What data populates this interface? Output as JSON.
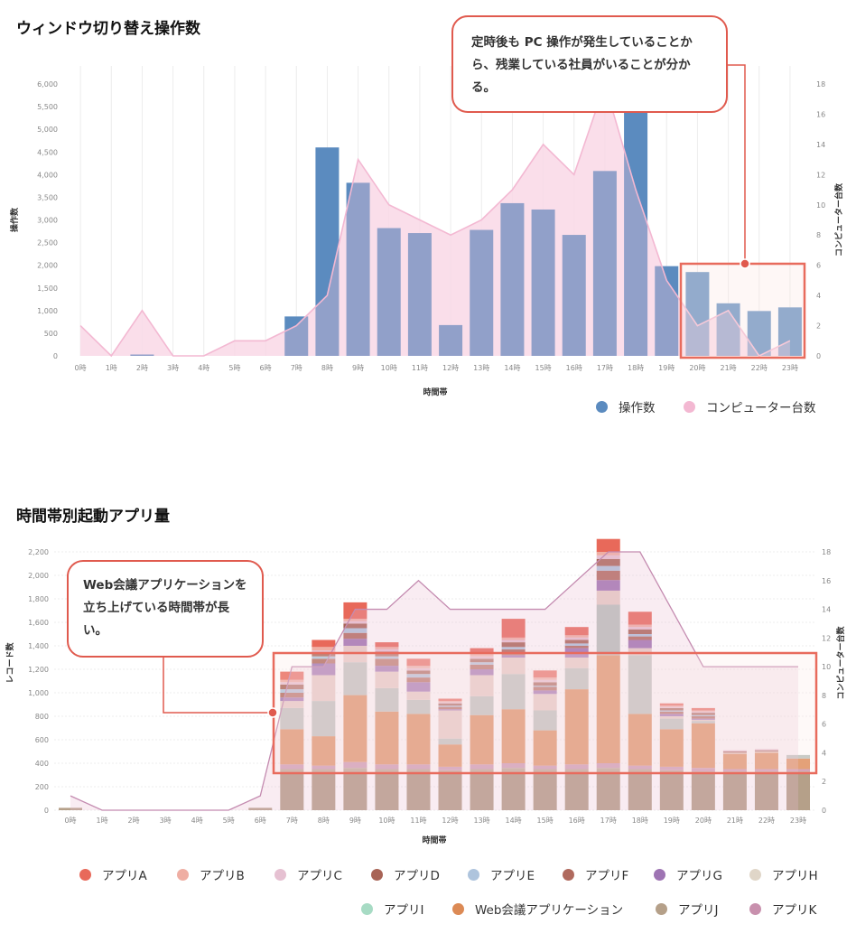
{
  "section1": {
    "title": "ウィンドウ切り替え操作数"
  },
  "section2": {
    "title": "時間帯別起動アプリ量"
  },
  "callout1": {
    "text": "定時後も PC 操作が発生していることから、残業している社員がいることが分かる。"
  },
  "callout2": {
    "text": "Web会議アプリケーションを立ち上げている時間帯が長い。"
  },
  "colors": {
    "accent": "#e05a4e",
    "bar_blue": "#5b8bbf",
    "line_pink": "#f3a7c6",
    "arrow_orange": "#f47c3c"
  },
  "chart_data": [
    {
      "type": "bar",
      "categories": [
        "0時",
        "1時",
        "2時",
        "3時",
        "4時",
        "5時",
        "6時",
        "7時",
        "8時",
        "9時",
        "10時",
        "11時",
        "12時",
        "13時",
        "14時",
        "15時",
        "16時",
        "17時",
        "18時",
        "19時",
        "20時",
        "21時",
        "22時",
        "23時"
      ],
      "xlabel": "時間帯",
      "ylabel": "操作数",
      "y2label": "コンピューター台数",
      "ylim": [
        0,
        6000
      ],
      "y2lim": [
        0,
        18
      ],
      "yticks": [
        "0",
        "500",
        "1,000",
        "1,500",
        "2,000",
        "2,500",
        "3,000",
        "3,500",
        "4,000",
        "4,500",
        "5,000",
        "5,500",
        "6,000"
      ],
      "y2ticks": [
        "0",
        "2",
        "4",
        "6",
        "8",
        "10",
        "12",
        "14",
        "16",
        "18"
      ],
      "series": [
        {
          "name": "操作数",
          "kind": "bar",
          "axis": "left",
          "color": "#5b8bbf",
          "values": [
            0,
            0,
            30,
            0,
            0,
            0,
            0,
            870,
            4600,
            3820,
            2820,
            2710,
            680,
            2780,
            3370,
            3230,
            2670,
            4080,
            5680,
            1980,
            1850,
            1160,
            990,
            1070
          ]
        },
        {
          "name": "コンピューター台数",
          "kind": "area",
          "axis": "right",
          "color": "#f3a7c6",
          "values": [
            2,
            0,
            3,
            0,
            0,
            1,
            1,
            2,
            4,
            13,
            10,
            9,
            8,
            9,
            11,
            14,
            12,
            18,
            11,
            5,
            2,
            3,
            0,
            1
          ]
        }
      ],
      "legend_position": "bottom-right"
    },
    {
      "type": "bar",
      "stacked": true,
      "categories": [
        "0時",
        "1時",
        "2時",
        "3時",
        "4時",
        "5時",
        "6時",
        "7時",
        "8時",
        "9時",
        "10時",
        "11時",
        "12時",
        "13時",
        "14時",
        "15時",
        "16時",
        "17時",
        "18時",
        "19時",
        "20時",
        "21時",
        "22時",
        "23時"
      ],
      "xlabel": "時間帯",
      "ylabel": "レコード数",
      "y2label": "コンピューター台数",
      "ylim": [
        0,
        2200
      ],
      "y2lim": [
        0,
        18
      ],
      "yticks": [
        "0",
        "200",
        "400",
        "600",
        "800",
        "1,000",
        "1,200",
        "1,400",
        "1,600",
        "1,800",
        "2,000",
        "2,200"
      ],
      "y2ticks": [
        "0",
        "2",
        "4",
        "6",
        "8",
        "10",
        "12",
        "14",
        "16",
        "18"
      ],
      "series": [
        {
          "name": "アプリJ",
          "color": "#b5a089",
          "values": [
            20,
            0,
            0,
            0,
            0,
            0,
            20,
            350,
            350,
            360,
            350,
            350,
            340,
            350,
            360,
            350,
            350,
            360,
            350,
            340,
            330,
            330,
            330,
            330
          ]
        },
        {
          "name": "アプリK",
          "color": "#c890ad",
          "values": [
            0,
            0,
            0,
            0,
            0,
            0,
            0,
            40,
            30,
            50,
            40,
            40,
            30,
            40,
            40,
            30,
            40,
            40,
            30,
            30,
            30,
            20,
            20,
            20
          ]
        },
        {
          "name": "Web会議アプリケーション",
          "color": "#dc8a55",
          "values": [
            0,
            0,
            0,
            0,
            0,
            0,
            0,
            300,
            250,
            570,
            450,
            430,
            190,
            420,
            460,
            300,
            640,
            920,
            440,
            320,
            380,
            130,
            140,
            90
          ]
        },
        {
          "name": "アプリI",
          "color": "#b9c2bd",
          "values": [
            0,
            0,
            0,
            0,
            0,
            0,
            0,
            180,
            300,
            280,
            200,
            120,
            50,
            160,
            300,
            170,
            180,
            430,
            500,
            90,
            20,
            0,
            0,
            30
          ]
        },
        {
          "name": "アプリH",
          "color": "#e6cfc6",
          "values": [
            0,
            0,
            0,
            0,
            0,
            0,
            0,
            60,
            220,
            140,
            140,
            70,
            240,
            180,
            140,
            140,
            90,
            120,
            60,
            20,
            10,
            10,
            10,
            0
          ]
        },
        {
          "name": "アプリG",
          "color": "#9e74b3",
          "values": [
            0,
            0,
            0,
            0,
            0,
            0,
            0,
            30,
            100,
            60,
            50,
            80,
            10,
            50,
            20,
            30,
            80,
            90,
            70,
            20,
            10,
            0,
            0,
            0
          ]
        },
        {
          "name": "アプリF",
          "color": "#b06a5e",
          "values": [
            0,
            0,
            0,
            0,
            0,
            0,
            0,
            40,
            40,
            50,
            60,
            40,
            20,
            40,
            50,
            30,
            20,
            80,
            30,
            20,
            20,
            0,
            0,
            0
          ]
        },
        {
          "name": "アプリE",
          "color": "#aec4dd",
          "values": [
            0,
            0,
            0,
            0,
            0,
            0,
            0,
            30,
            20,
            40,
            20,
            30,
            10,
            20,
            20,
            10,
            20,
            40,
            20,
            10,
            10,
            0,
            0,
            0
          ]
        },
        {
          "name": "アプリD",
          "color": "#a86456",
          "values": [
            0,
            0,
            0,
            0,
            0,
            0,
            0,
            40,
            30,
            40,
            40,
            30,
            20,
            30,
            40,
            30,
            30,
            60,
            40,
            20,
            20,
            10,
            10,
            0
          ]
        },
        {
          "name": "アプリC",
          "color": "#e6c1d2",
          "values": [
            0,
            0,
            0,
            0,
            0,
            0,
            0,
            20,
            20,
            20,
            20,
            20,
            10,
            20,
            20,
            20,
            20,
            30,
            20,
            10,
            10,
            10,
            10,
            0
          ]
        },
        {
          "name": "アプリB",
          "color": "#efaea3",
          "values": [
            0,
            0,
            0,
            0,
            0,
            0,
            0,
            20,
            30,
            20,
            20,
            20,
            10,
            20,
            20,
            20,
            20,
            30,
            20,
            10,
            10,
            0,
            0,
            0
          ]
        },
        {
          "name": "アプリA",
          "color": "#e8695a",
          "values": [
            0,
            0,
            0,
            0,
            0,
            0,
            0,
            70,
            60,
            140,
            40,
            60,
            20,
            50,
            160,
            60,
            70,
            110,
            110,
            20,
            20,
            0,
            0,
            0
          ]
        }
      ],
      "line_series": {
        "name": "コンピューター台数",
        "axis": "right",
        "color": "#c48bb0",
        "values": [
          1,
          0,
          0,
          0,
          0,
          0,
          1,
          10,
          10,
          14,
          14,
          16,
          14,
          14,
          14,
          14,
          16,
          18,
          18,
          14,
          10,
          10,
          10,
          10
        ]
      },
      "legend": [
        "アプリA",
        "アプリB",
        "アプリC",
        "アプリD",
        "アプリE",
        "アプリF",
        "アプリG",
        "アプリH",
        "アプリI",
        "Web会議アプリケーション",
        "アプリJ",
        "アプリK"
      ],
      "legend_colors": [
        "#e8695a",
        "#efaea3",
        "#e6c1d2",
        "#a86456",
        "#aec4dd",
        "#b06a5e",
        "#9e74b3",
        "#e0d6c8",
        "#a7dbc4",
        "#dc8a55",
        "#b5a089",
        "#c890ad"
      ],
      "legend_position": "bottom"
    }
  ]
}
